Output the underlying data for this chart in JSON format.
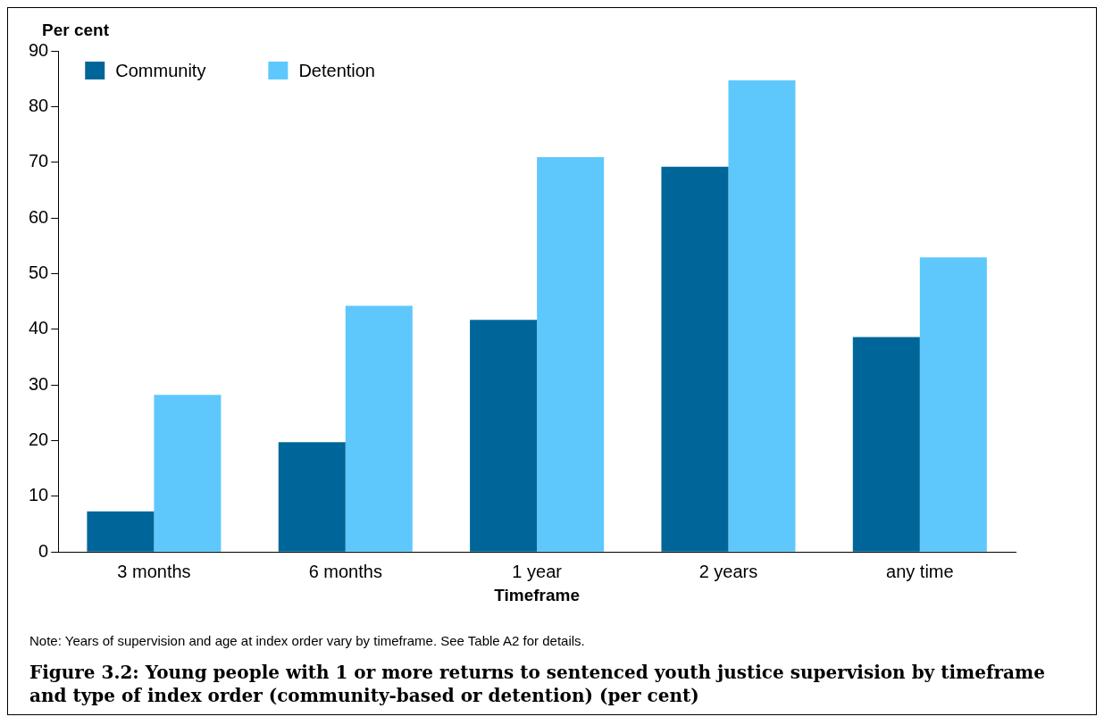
{
  "chart_data": {
    "type": "bar",
    "title": "Figure 3.2: Young people with 1 or more returns to sentenced youth justice supervision by timeframe and type of index order (community-based or detention) (per cent)",
    "xlabel": "Timeframe",
    "ylabel": "Per cent",
    "categories": [
      "3 months",
      "6 months",
      "1 year",
      "2 years",
      "any time"
    ],
    "series": [
      {
        "name": "Community",
        "color": "#006699",
        "values": [
          7.3,
          19.7,
          41.7,
          69.2,
          38.6
        ]
      },
      {
        "name": "Detention",
        "color": "#5ec8fc",
        "values": [
          28.2,
          44.2,
          70.9,
          84.7,
          52.9
        ]
      }
    ],
    "ylim": [
      0,
      90
    ],
    "yticks": [
      0,
      10,
      20,
      30,
      40,
      50,
      60,
      70,
      80,
      90
    ],
    "grid": false,
    "legend": "top left",
    "annotations": [
      "Note: Years of supervision and age at index order vary by timeframe. See Table A2 for details."
    ]
  }
}
